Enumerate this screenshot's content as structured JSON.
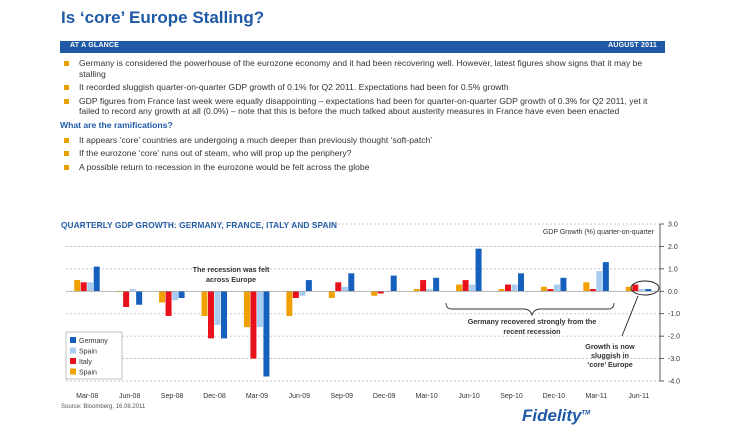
{
  "header": {
    "title": "Is ‘core’ Europe Stalling?",
    "left_label": "AT A GLANCE",
    "right_label": "AUGUST 2011"
  },
  "bullets": [
    "Germany is considered the powerhouse of the eurozone economy and it had been recovering well. However, latest figures show signs that it may be stalling",
    "It recorded sluggish quarter-on-quarter GDP growth of 0.1% for Q2 2011. Expectations had been for 0.5% growth",
    "GDP figures from France last week were equally disappointing – expectations had been for quarter-on-quarter GDP growth of 0.3% for Q2 2011, yet it failed to record any growth at all (0.0%) – note that this is before the much talked about austerity measures in France have even been enacted"
  ],
  "subheading": "What are the ramifications?",
  "bullets2": [
    "It appears ‘core’ countries are undergoing a much deeper than previously thought ‘soft-patch’",
    "If the eurozone ‘core’ runs out of steam, who will prop up the periphery?",
    "A possible return to recession in the eurozone would be felt across the globe"
  ],
  "chart_data": {
    "type": "bar",
    "title": "QUARTERLY GDP GROWTH: GERMANY, FRANCE, ITALY AND SPAIN",
    "ylabel": "GDP Growth (%) quarter-on-quarter",
    "ylim": [
      -4.0,
      3.0
    ],
    "yticks": [
      "3.0",
      "2.0",
      "1.0",
      "0.0",
      "-1.0",
      "-2.0",
      "-3.0",
      "-4.0"
    ],
    "categories": [
      "Q1-08",
      "Q2-08",
      "Q3-08",
      "Q4-08",
      "Q1-09",
      "Q2-09",
      "Q3-09",
      "Q4-09",
      "Q1-10",
      "Q2-10",
      "Q3-10",
      "Q4-10",
      "Q1-11",
      "Q2-11"
    ],
    "xtick_labels": [
      "Mar-08",
      "Jun-08",
      "Sep-08",
      "Dec-08",
      "Mar-09",
      "Jun-09",
      "Sep-09",
      "Dec-09",
      "Mar-10",
      "Jun-10",
      "Sep-10",
      "Dec-10",
      "Mar-11",
      "Jun-11"
    ],
    "series": [
      {
        "name": "Spain",
        "color": "#f0a000",
        "values": [
          0.5,
          0.0,
          -0.5,
          -1.1,
          -1.6,
          -1.1,
          -0.3,
          -0.2,
          0.1,
          0.3,
          0.1,
          0.2,
          0.4,
          0.2
        ]
      },
      {
        "name": "Italy",
        "color": "#e8101a",
        "values": [
          0.4,
          -0.7,
          -1.1,
          -2.1,
          -3.0,
          -0.3,
          0.4,
          -0.1,
          0.5,
          0.5,
          0.3,
          0.1,
          0.1,
          0.3
        ]
      },
      {
        "name": "Spain",
        "color": "#a8cdf0",
        "values": [
          0.4,
          0.1,
          -0.4,
          -1.5,
          -1.6,
          -0.2,
          0.2,
          0.0,
          0.1,
          0.3,
          0.3,
          0.3,
          0.9,
          0.1
        ]
      },
      {
        "name": "Germany",
        "color": "#1560bd",
        "values": [
          1.1,
          -0.6,
          -0.3,
          -2.1,
          -3.8,
          0.5,
          0.8,
          0.7,
          0.6,
          1.9,
          0.8,
          0.6,
          1.3,
          0.1
        ]
      }
    ],
    "legend": [
      "Germany",
      "Spain",
      "Italy",
      "Spain"
    ],
    "legend_colors": [
      "#1560bd",
      "#a8cdf0",
      "#e8101a",
      "#f0a000"
    ],
    "annotations": {
      "recession": "The recession was felt across Europe",
      "recovered": "Germany recovered strongly from the recent recession",
      "sluggish": "Growth is now sluggish in ‘core’ Europe"
    }
  },
  "footer": {
    "source": "Source: Bloomberg, 16.08.2011",
    "logo": "Fidelity",
    "logo_mark": "TM"
  }
}
